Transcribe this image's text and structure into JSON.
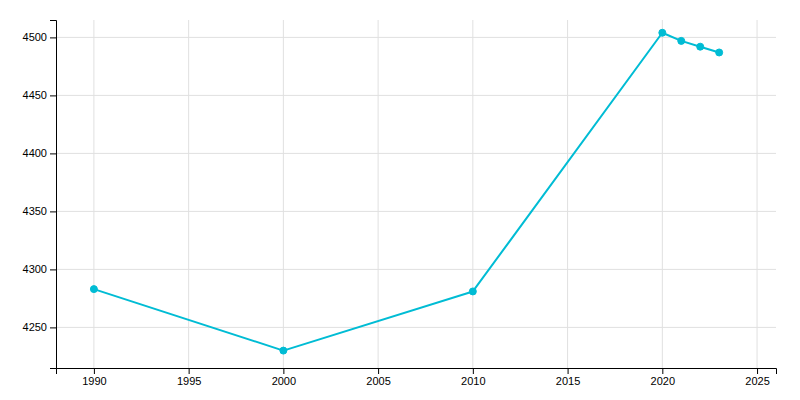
{
  "chart_data": {
    "type": "line",
    "x": [
      1990,
      2000,
      2010,
      2020,
      2021,
      2022,
      2023
    ],
    "values": [
      4283,
      4230,
      4281,
      4504,
      4497,
      4492,
      4487
    ],
    "color": "#00BCD4",
    "marker": "circle",
    "xlim": [
      1988,
      2026
    ],
    "ylim": [
      4215,
      4515
    ],
    "xticks": [
      1990,
      1995,
      2000,
      2005,
      2010,
      2015,
      2020,
      2025
    ],
    "yticks": [
      4250,
      4300,
      4350,
      4400,
      4450,
      4500
    ],
    "grid": true
  }
}
